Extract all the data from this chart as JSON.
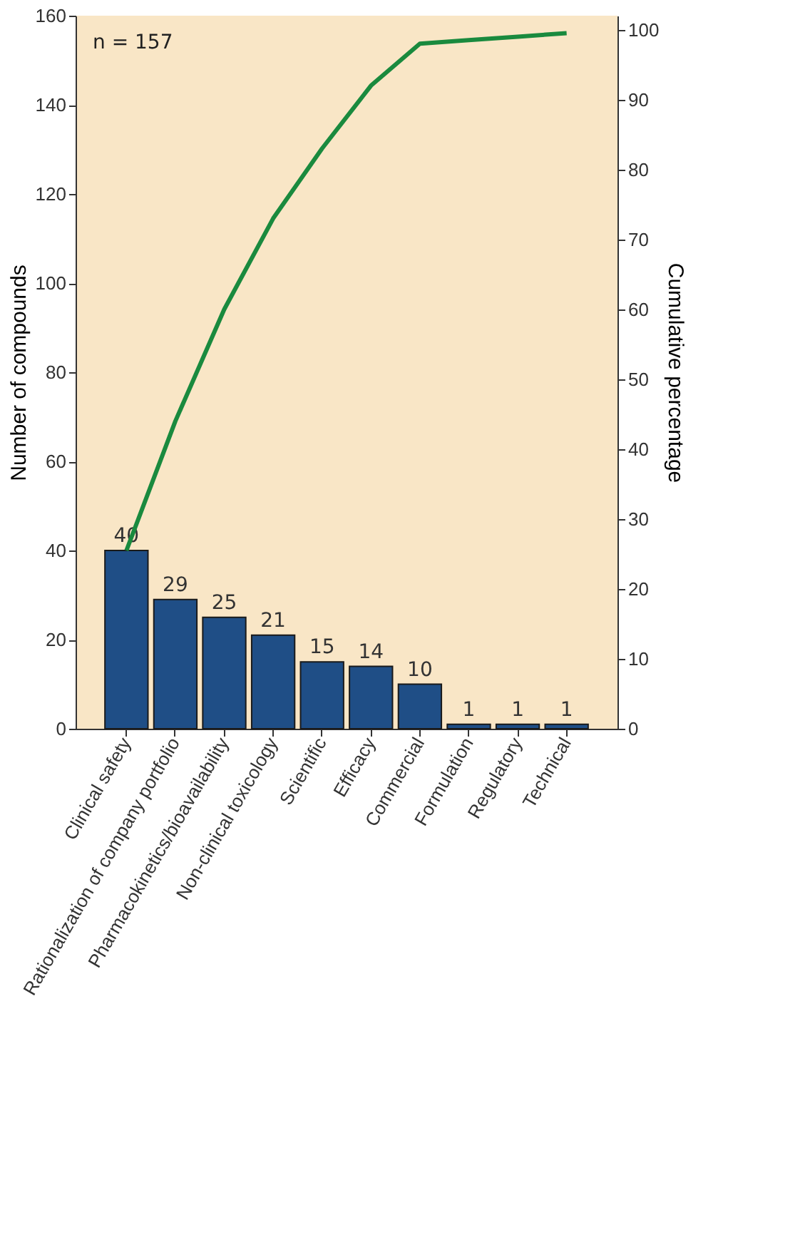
{
  "chart_data": {
    "type": "bar",
    "xlabel": null,
    "ylabel": "Number of compounds",
    "y2label": "Cumulative percentage",
    "categories": [
      "Clinical safety",
      "Rationalization of company portfolio",
      "Pharmacokinetics/bioavailability",
      "Non-clinical toxicology",
      "Scientific",
      "Efficacy",
      "Commercial",
      "Formulation",
      "Regulatory",
      "Technical"
    ],
    "series": [
      {
        "color": "#1f4e86",
        "values": [
          40,
          29,
          25,
          21,
          15,
          14,
          10,
          1,
          1,
          1
        ],
        "value_labels": [
          "40",
          "29",
          "25",
          "21",
          "15",
          "14",
          "10",
          "1",
          "1",
          "1"
        ]
      },
      {
        "type": "line",
        "axis": "y2",
        "color": "#1a8a3e",
        "values": [
          25.5,
          44,
          60,
          73,
          83,
          92,
          98,
          98.5,
          99,
          99.5
        ]
      }
    ],
    "ylim": [
      0,
      160
    ],
    "yticks": [
      0,
      20,
      40,
      60,
      80,
      100,
      120,
      140,
      160
    ],
    "y2lim": [
      0,
      102
    ],
    "y2ticks": [
      0,
      10,
      20,
      30,
      40,
      50,
      60,
      70,
      80,
      90,
      100
    ],
    "grid": false,
    "marker": "none",
    "line_style": "solid",
    "annotations": [
      "n = 157"
    ]
  }
}
